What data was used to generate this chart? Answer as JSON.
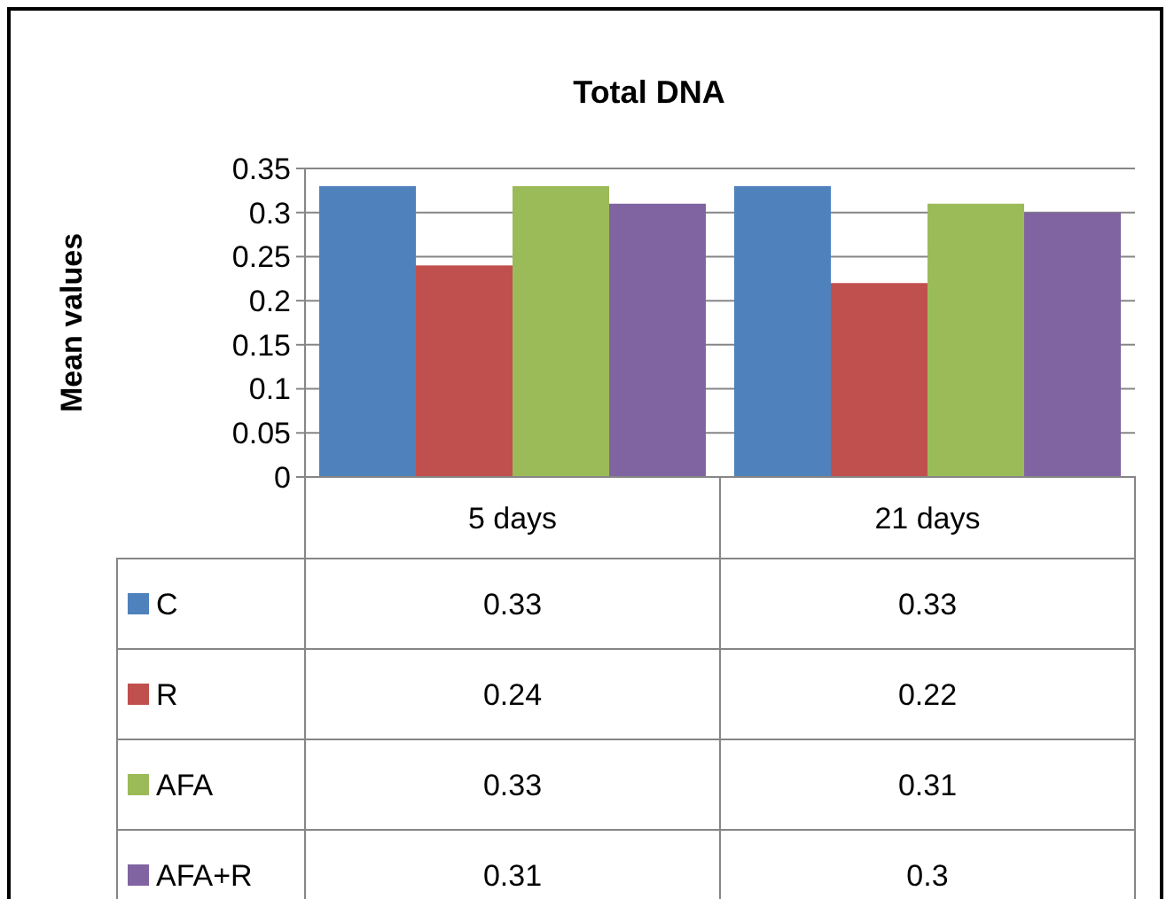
{
  "chart_data": {
    "type": "bar",
    "title": "Total DNA",
    "ylabel": "Mean values",
    "categories": [
      "5 days",
      "21 days"
    ],
    "series": [
      {
        "name": "C",
        "color": "#4f81bd",
        "values": [
          0.33,
          0.33
        ]
      },
      {
        "name": "R",
        "color": "#c0504d",
        "values": [
          0.24,
          0.22
        ]
      },
      {
        "name": "AFA",
        "color": "#9bbb59",
        "values": [
          0.33,
          0.31
        ]
      },
      {
        "name": "AFA+R",
        "color": "#8064a2",
        "values": [
          0.31,
          0.3
        ]
      }
    ],
    "ylim": [
      0,
      0.35
    ],
    "yticks": [
      0,
      0.05,
      0.1,
      0.15,
      0.2,
      0.25,
      0.3,
      0.35
    ],
    "grid": "y",
    "legend": "bottom left",
    "data_labels": true
  }
}
